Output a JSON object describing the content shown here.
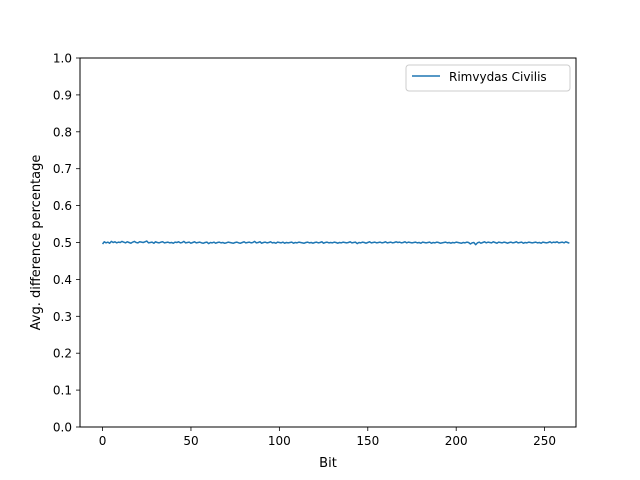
{
  "chart_data": {
    "type": "line",
    "xlabel": "Bit",
    "ylabel": "Avg. difference percentage",
    "xlim": [
      -12.75,
      267.75
    ],
    "ylim": [
      0.0,
      1.0
    ],
    "x_ticks": [
      0,
      50,
      100,
      150,
      200,
      250
    ],
    "y_ticks": [
      0.0,
      0.1,
      0.2,
      0.3,
      0.4,
      0.5,
      0.6,
      0.7,
      0.8,
      0.9,
      1.0
    ],
    "x_tick_labels": [
      "0",
      "50",
      "100",
      "150",
      "200",
      "250"
    ],
    "y_tick_labels": [
      "0.0",
      "0.1",
      "0.2",
      "0.3",
      "0.4",
      "0.5",
      "0.6",
      "0.7",
      "0.8",
      "0.9",
      "1.0"
    ],
    "legend": "top-right",
    "grid": false,
    "series": [
      {
        "name": "Rimvydas Civilis",
        "color": "#1f77b4",
        "x_start": 0,
        "x_step": 1,
        "values": [
          0.496,
          0.502,
          0.499,
          0.501,
          0.498,
          0.503,
          0.5,
          0.502,
          0.499,
          0.501,
          0.5,
          0.503,
          0.501,
          0.499,
          0.502,
          0.5,
          0.498,
          0.501,
          0.503,
          0.5,
          0.499,
          0.502,
          0.501,
          0.5,
          0.502,
          0.504,
          0.499,
          0.5,
          0.501,
          0.498,
          0.502,
          0.5,
          0.499,
          0.501,
          0.502,
          0.499,
          0.5,
          0.501,
          0.499,
          0.5,
          0.498,
          0.501,
          0.5,
          0.502,
          0.499,
          0.5,
          0.503,
          0.499,
          0.5,
          0.501,
          0.498,
          0.5,
          0.502,
          0.499,
          0.5,
          0.501,
          0.499,
          0.498,
          0.5,
          0.501,
          0.497,
          0.5,
          0.499,
          0.501,
          0.498,
          0.5,
          0.501,
          0.499,
          0.5,
          0.498,
          0.499,
          0.501,
          0.5,
          0.499,
          0.498,
          0.5,
          0.501,
          0.499,
          0.498,
          0.5,
          0.502,
          0.499,
          0.5,
          0.501,
          0.499,
          0.5,
          0.503,
          0.499,
          0.5,
          0.502,
          0.498,
          0.5,
          0.501,
          0.499,
          0.5,
          0.502,
          0.499,
          0.5,
          0.498,
          0.501,
          0.5,
          0.499,
          0.501,
          0.498,
          0.5,
          0.499,
          0.5,
          0.501,
          0.498,
          0.5,
          0.499,
          0.501,
          0.5,
          0.499,
          0.498,
          0.5,
          0.501,
          0.499,
          0.5,
          0.498,
          0.5,
          0.501,
          0.499,
          0.5,
          0.502,
          0.498,
          0.5,
          0.501,
          0.499,
          0.5,
          0.499,
          0.501,
          0.5,
          0.498,
          0.5,
          0.499,
          0.501,
          0.5,
          0.499,
          0.5,
          0.502,
          0.499,
          0.5,
          0.501,
          0.497,
          0.5,
          0.499,
          0.501,
          0.5,
          0.498,
          0.5,
          0.502,
          0.499,
          0.5,
          0.501,
          0.499,
          0.5,
          0.501,
          0.499,
          0.5,
          0.502,
          0.499,
          0.5,
          0.501,
          0.499,
          0.5,
          0.502,
          0.5,
          0.501,
          0.499,
          0.5,
          0.502,
          0.499,
          0.501,
          0.5,
          0.499,
          0.5,
          0.501,
          0.499,
          0.5,
          0.498,
          0.501,
          0.5,
          0.499,
          0.5,
          0.501,
          0.498,
          0.5,
          0.499,
          0.501,
          0.5,
          0.498,
          0.499,
          0.5,
          0.501,
          0.499,
          0.5,
          0.498,
          0.5,
          0.499,
          0.501,
          0.5,
          0.499,
          0.498,
          0.5,
          0.499,
          0.501,
          0.5,
          0.496,
          0.499,
          0.5,
          0.494,
          0.499,
          0.501,
          0.498,
          0.5,
          0.502,
          0.499,
          0.501,
          0.5,
          0.499,
          0.502,
          0.5,
          0.498,
          0.501,
          0.5,
          0.499,
          0.501,
          0.5,
          0.498,
          0.5,
          0.501,
          0.499,
          0.5,
          0.502,
          0.499,
          0.5,
          0.501,
          0.498,
          0.5,
          0.499,
          0.501,
          0.5,
          0.499,
          0.5,
          0.501,
          0.499,
          0.5,
          0.498,
          0.501,
          0.5,
          0.499,
          0.5,
          0.502,
          0.499,
          0.501,
          0.5,
          0.502,
          0.499,
          0.5,
          0.501,
          0.499,
          0.502,
          0.5,
          0.498
        ]
      }
    ]
  }
}
